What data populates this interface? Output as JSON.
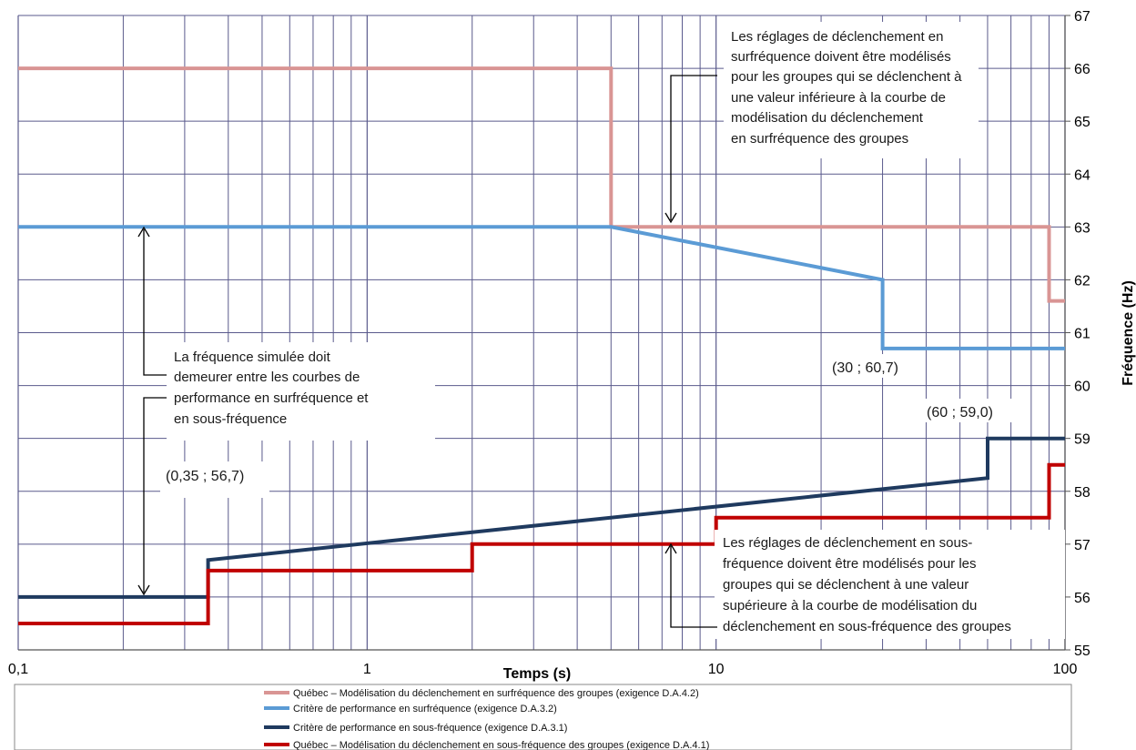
{
  "chart_data": {
    "type": "line",
    "x_scale": "log",
    "xlim": [
      0.1,
      100
    ],
    "ylim": [
      55,
      67
    ],
    "y_axis_side": "right",
    "grid": true,
    "xlabel": "Temps (s)",
    "ylabel": "Fréquence (Hz)",
    "x_ticks": [
      {
        "value": 0.1,
        "label": "0,1"
      },
      {
        "value": 1,
        "label": "1"
      },
      {
        "value": 10,
        "label": "10"
      },
      {
        "value": 100,
        "label": "100"
      }
    ],
    "y_ticks": [
      {
        "value": 55,
        "label": "55"
      },
      {
        "value": 56,
        "label": "56"
      },
      {
        "value": 57,
        "label": "57"
      },
      {
        "value": 58,
        "label": "58"
      },
      {
        "value": 59,
        "label": "59"
      },
      {
        "value": 60,
        "label": "60"
      },
      {
        "value": 61,
        "label": "61"
      },
      {
        "value": 62,
        "label": "62"
      },
      {
        "value": 63,
        "label": "63"
      },
      {
        "value": 64,
        "label": "64"
      },
      {
        "value": 65,
        "label": "65"
      },
      {
        "value": 66,
        "label": "66"
      },
      {
        "value": 67,
        "label": "67"
      }
    ],
    "legend_position": "bottom",
    "series": [
      {
        "name": "Québec – Modélisation du déclenchement en surfréquence des groupes (exigence D.A.4.2)",
        "color": "#d99594",
        "points": [
          [
            0.1,
            66
          ],
          [
            5,
            66
          ],
          [
            5,
            63
          ],
          [
            90,
            63
          ],
          [
            90,
            61.6
          ],
          [
            100,
            61.6
          ]
        ]
      },
      {
        "name": "Critère de performance en surfréquence (exigence D.A.3.2)",
        "color": "#5b9bd5",
        "points": [
          [
            0.1,
            63
          ],
          [
            5,
            63
          ],
          [
            30,
            62
          ],
          [
            30,
            60.7
          ],
          [
            100,
            60.7
          ]
        ]
      },
      {
        "name": "Critère de performance en sous-fréquence (exigence D.A.3.1)",
        "color": "#1f3a5f",
        "points": [
          [
            0.1,
            56
          ],
          [
            0.35,
            56
          ],
          [
            0.35,
            56.7
          ],
          [
            60,
            58.25
          ],
          [
            60,
            59
          ],
          [
            100,
            59
          ]
        ]
      },
      {
        "name": "Québec – Modélisation du déclenchement en sous-fréquence des groupes (exigence D.A.4.1)",
        "color": "#c00000",
        "points": [
          [
            0.1,
            55.5
          ],
          [
            0.35,
            55.5
          ],
          [
            0.35,
            56.5
          ],
          [
            2,
            56.5
          ],
          [
            2,
            57
          ],
          [
            10,
            57
          ],
          [
            10,
            57.5
          ],
          [
            90,
            57.5
          ],
          [
            90,
            58.5
          ],
          [
            100,
            58.5
          ]
        ]
      }
    ],
    "annotations": [
      {
        "lines": [
          "Les réglages de déclenchement en",
          "surfréquence  doivent être modélisés",
          "pour les groupes qui se déclenchent à",
          "une valeur inférieure à la courbe de",
          "modélisation du déclenchement",
          "en surfréquence des groupes"
        ]
      },
      {
        "lines": [
          "La fréquence simulée doit",
          "demeurer entre les courbes de",
          "performance en surfréquence et",
          "en sous-fréquence"
        ]
      },
      {
        "lines": [
          "Les réglages de déclenchement en sous-",
          "fréquence doivent être modélisés pour les",
          "groupes qui se déclenchent à une valeur",
          "supérieure à la courbe de modélisation du",
          "déclenchement en sous-fréquence des groupes"
        ]
      }
    ],
    "point_labels": [
      {
        "text": "(30 ; 60,7)"
      },
      {
        "text": "(60 ; 59,0)"
      },
      {
        "text": "(0,35 ; 56,7)"
      }
    ]
  }
}
